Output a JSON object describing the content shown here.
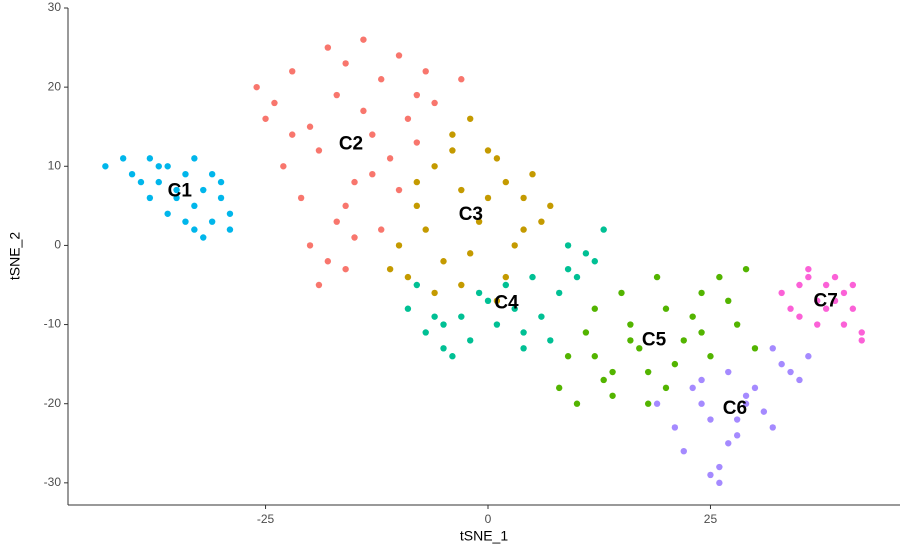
{
  "chart_data": {
    "type": "scatter",
    "x_label": "tSNE_1",
    "y_label": "tSNE_2",
    "xlim": [
      -47.2,
      46.3
    ],
    "ylim": [
      -32.8,
      30
    ],
    "xticks": [
      -25,
      0,
      25
    ],
    "yticks": [
      -30,
      -20,
      -10,
      0,
      10,
      20,
      30
    ],
    "grid": false,
    "series": [
      {
        "name": "C1",
        "color": "#00B6EB",
        "x": [
          -43,
          -41,
          -40,
          -38,
          -37,
          -36,
          -35,
          -34,
          -33,
          -32,
          -31,
          -30,
          -29,
          -39,
          -36,
          -33,
          -31,
          -35,
          -38,
          -32,
          -30,
          -34,
          -37,
          -33,
          -29
        ],
        "values": [
          10,
          11,
          9,
          11,
          8,
          10,
          6,
          9,
          5,
          7,
          3,
          6,
          2,
          8,
          4,
          11,
          9,
          7,
          6,
          1,
          8,
          3,
          10,
          2,
          4
        ]
      },
      {
        "name": "C2",
        "color": "#F8766D",
        "x": [
          -26,
          -24,
          -22,
          -20,
          -18,
          -16,
          -14,
          -12,
          -10,
          -8,
          -6,
          -23,
          -21,
          -19,
          -17,
          -15,
          -13,
          -11,
          -9,
          -7,
          -20,
          -18,
          -16,
          -14,
          -12,
          -22,
          -17,
          -13,
          -10,
          -25,
          -19,
          -15,
          -3,
          -8,
          -16
        ],
        "values": [
          20,
          18,
          22,
          15,
          25,
          23,
          26,
          21,
          24,
          19,
          18,
          10,
          6,
          12,
          3,
          8,
          14,
          11,
          16,
          22,
          0,
          -2,
          5,
          17,
          2,
          14,
          19,
          9,
          7,
          16,
          -5,
          1,
          21,
          13,
          -3
        ]
      },
      {
        "name": "C3",
        "color": "#C49A00",
        "x": [
          -10,
          -8,
          -6,
          -4,
          -2,
          0,
          2,
          4,
          6,
          -9,
          -7,
          -5,
          -3,
          -1,
          1,
          3,
          5,
          7,
          -11,
          -6,
          -2,
          2,
          -4,
          0,
          4,
          -8,
          1,
          -3
        ],
        "values": [
          0,
          5,
          10,
          14,
          16,
          12,
          8,
          6,
          3,
          -4,
          2,
          -2,
          7,
          3,
          11,
          0,
          9,
          5,
          -3,
          -6,
          -1,
          -4,
          12,
          6,
          2,
          8,
          -7,
          -5
        ]
      },
      {
        "name": "C4",
        "color": "#00C094",
        "x": [
          -9,
          -7,
          -5,
          -3,
          -1,
          1,
          3,
          5,
          7,
          9,
          11,
          13,
          -8,
          -6,
          -4,
          -2,
          0,
          2,
          4,
          6,
          8,
          10,
          12,
          -5,
          4,
          9
        ],
        "values": [
          -8,
          -11,
          -13,
          -9,
          -6,
          -10,
          -8,
          -4,
          -12,
          -3,
          -1,
          2,
          -5,
          -9,
          -14,
          -12,
          -7,
          -5,
          -11,
          -9,
          -6,
          -4,
          -2,
          -10,
          -13,
          0
        ]
      },
      {
        "name": "C5",
        "color": "#53B400",
        "x": [
          8,
          10,
          12,
          14,
          16,
          18,
          20,
          22,
          24,
          26,
          28,
          30,
          9,
          11,
          13,
          15,
          17,
          19,
          21,
          23,
          25,
          27,
          12,
          16,
          20,
          24,
          29,
          14,
          18
        ],
        "values": [
          -18,
          -20,
          -14,
          -19,
          -10,
          -16,
          -8,
          -12,
          -6,
          -4,
          -10,
          -13,
          -14,
          -11,
          -17,
          -6,
          -13,
          -4,
          -15,
          -9,
          -14,
          -7,
          -8,
          -12,
          -18,
          -11,
          -3,
          -16,
          -20
        ]
      },
      {
        "name": "C6",
        "color": "#A58AFF",
        "x": [
          19,
          21,
          23,
          25,
          27,
          29,
          31,
          33,
          35,
          36,
          22,
          24,
          26,
          28,
          30,
          32,
          34,
          25,
          27,
          29,
          24,
          26,
          28,
          32
        ],
        "values": [
          -20,
          -23,
          -18,
          -22,
          -16,
          -19,
          -21,
          -15,
          -17,
          -14,
          -26,
          -20,
          -28,
          -24,
          -18,
          -23,
          -16,
          -29,
          -25,
          -20,
          -17,
          -30,
          -22,
          -13
        ]
      },
      {
        "name": "C7",
        "color": "#FB61D7",
        "x": [
          33,
          34,
          35,
          36,
          37,
          38,
          39,
          40,
          41,
          42,
          35,
          37,
          39,
          41,
          36,
          38,
          40,
          42
        ],
        "values": [
          -6,
          -8,
          -5,
          -4,
          -7,
          -5,
          -4,
          -6,
          -8,
          -11,
          -9,
          -10,
          -7,
          -5,
          -3,
          -8,
          -10,
          -12
        ]
      }
    ]
  }
}
